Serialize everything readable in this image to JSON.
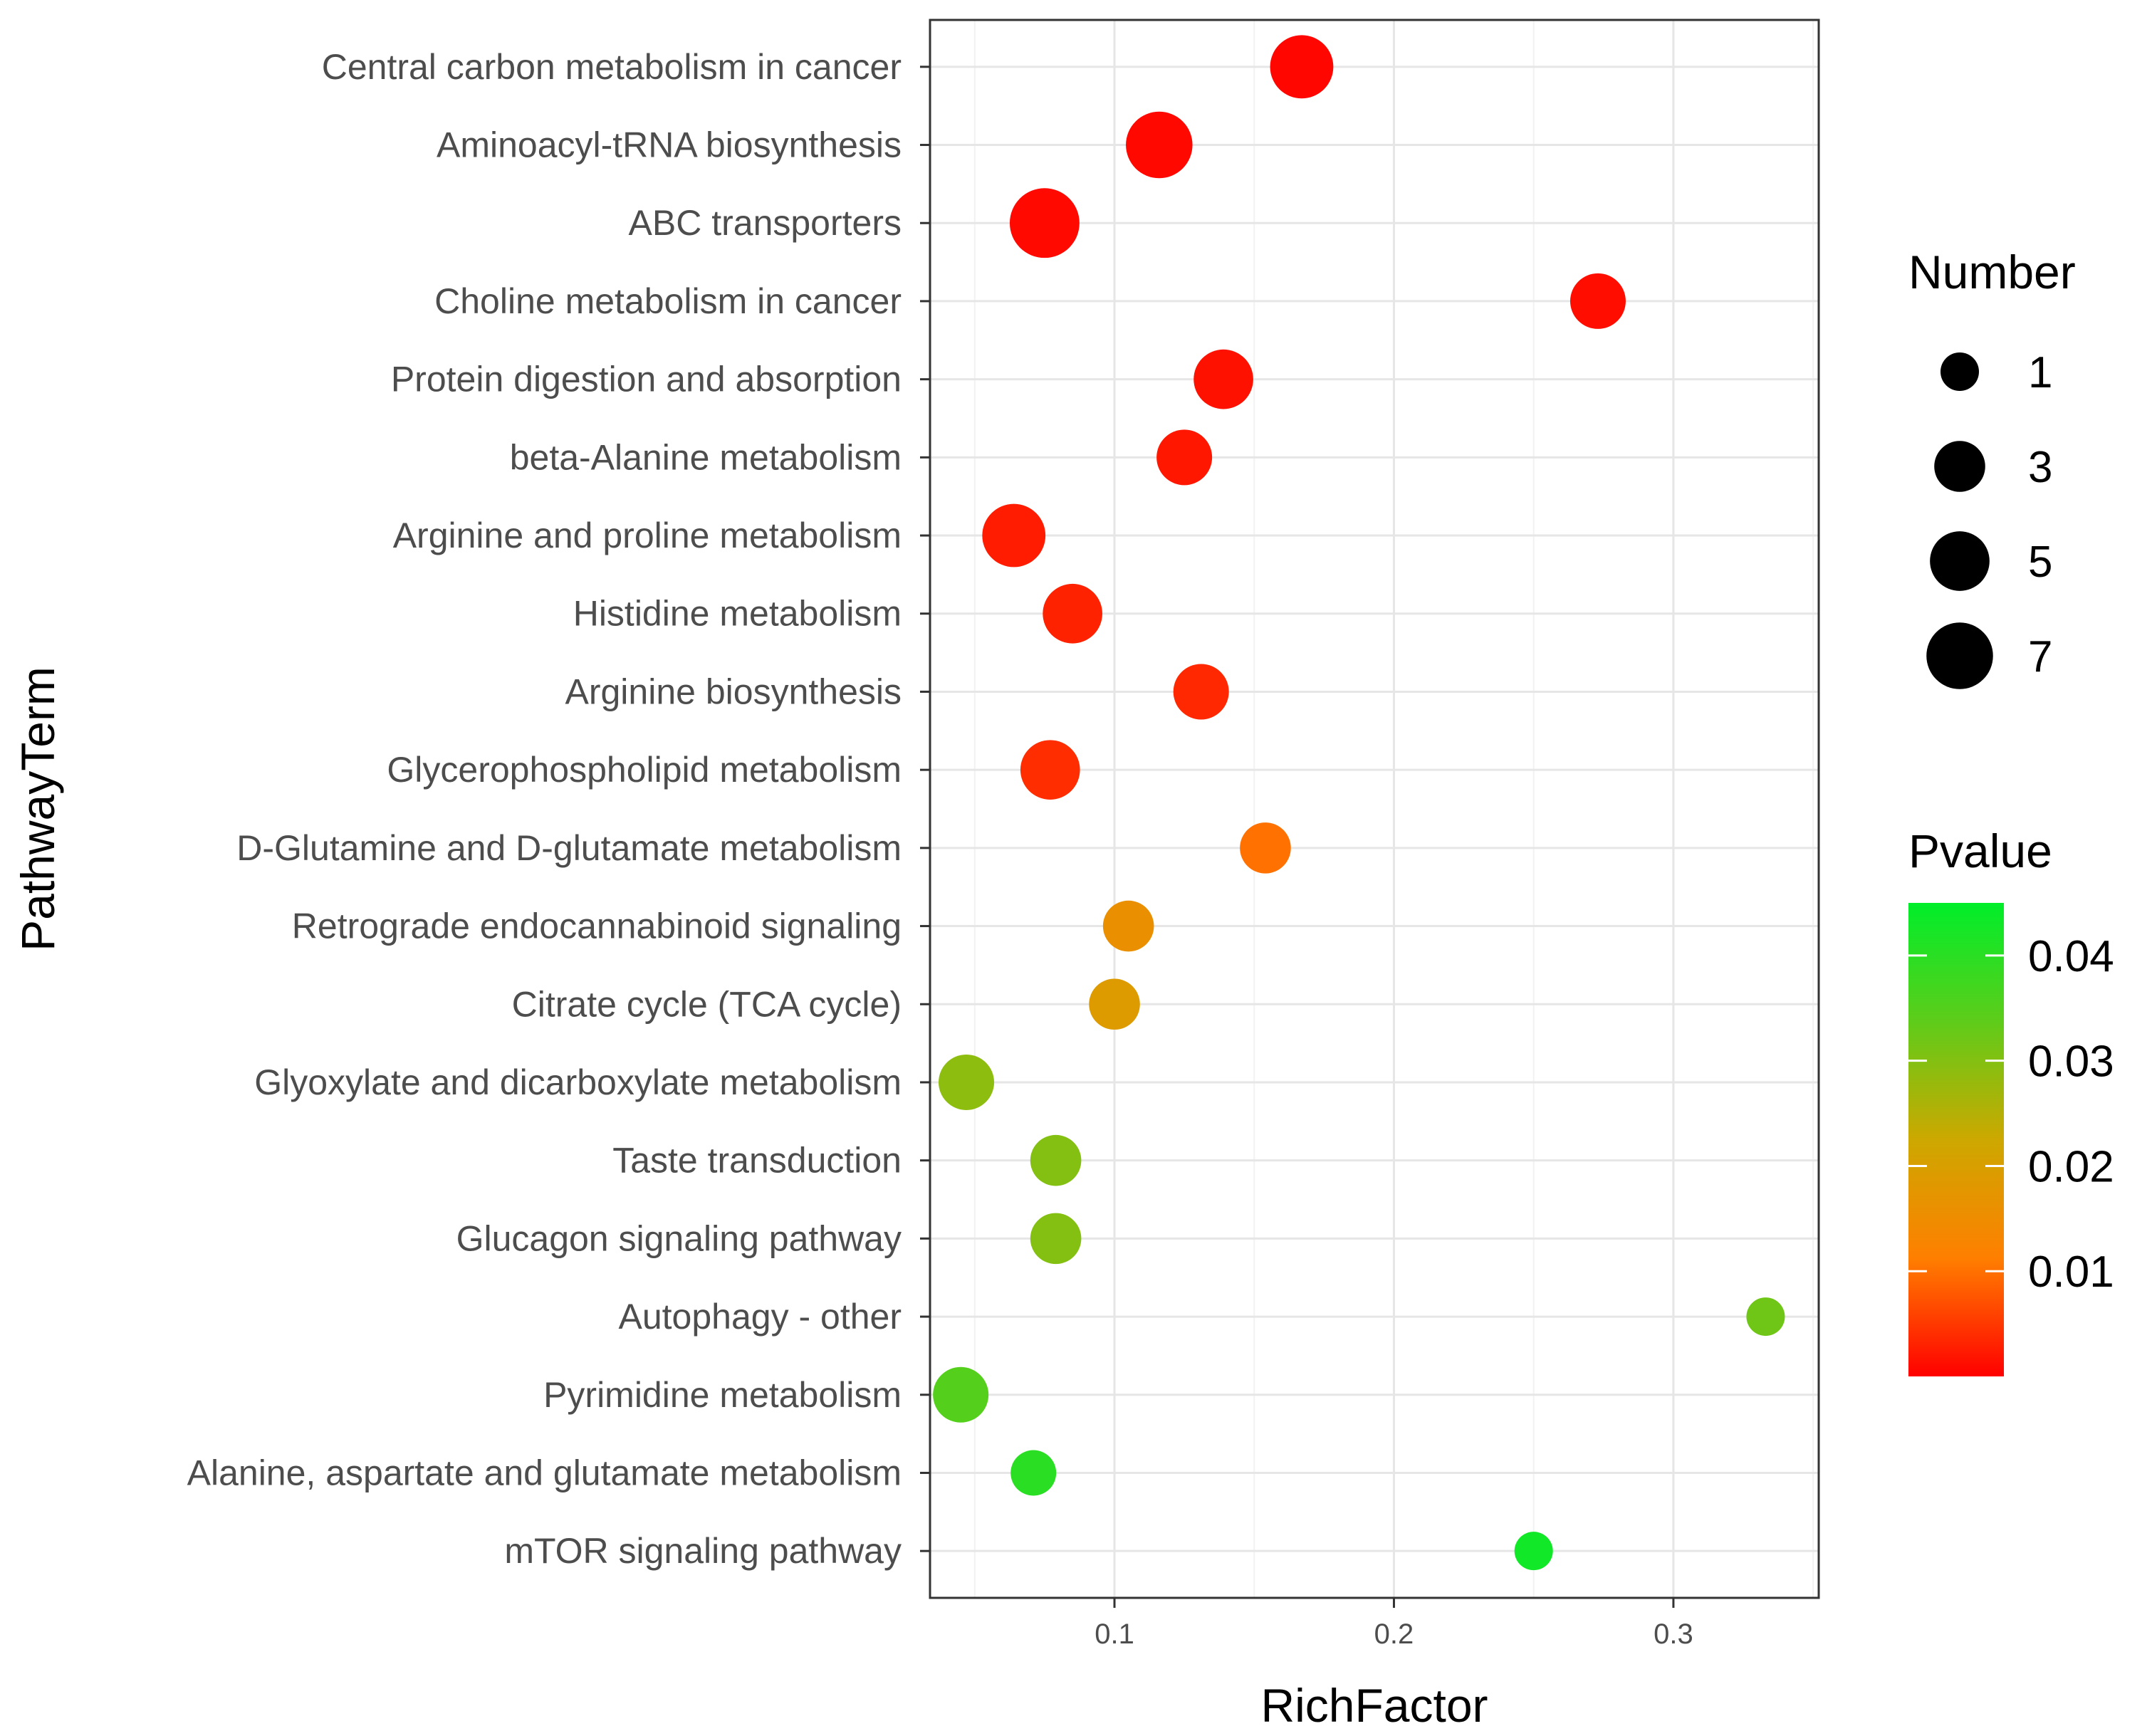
{
  "chart_data": {
    "type": "scatter",
    "xlabel": "RichFactor",
    "ylabel": "PathwayTerm",
    "xlim": [
      0.034,
      0.352
    ],
    "x_ticks": [
      "0.1",
      "0.2",
      "0.3"
    ],
    "x_tick_values": [
      0.1,
      0.2,
      0.3
    ],
    "grid": true,
    "legend_position": "right",
    "pathways": [
      {
        "term": "Central carbon metabolism in cancer",
        "richfactor": 0.167,
        "number": 6,
        "pvalue": 0.0005
      },
      {
        "term": "Aminoacyl-tRNA biosynthesis",
        "richfactor": 0.116,
        "number": 7,
        "pvalue": 0.0007
      },
      {
        "term": "ABC transporters",
        "richfactor": 0.075,
        "number": 8,
        "pvalue": 0.0008
      },
      {
        "term": "Choline metabolism in cancer",
        "richfactor": 0.273,
        "number": 4,
        "pvalue": 0.0012
      },
      {
        "term": "Protein digestion and absorption",
        "richfactor": 0.139,
        "number": 5,
        "pvalue": 0.0015
      },
      {
        "term": "beta-Alanine metabolism",
        "richfactor": 0.125,
        "number": 4,
        "pvalue": 0.002
      },
      {
        "term": "Arginine and proline metabolism",
        "richfactor": 0.064,
        "number": 6,
        "pvalue": 0.0025
      },
      {
        "term": "Histidine metabolism",
        "richfactor": 0.085,
        "number": 5,
        "pvalue": 0.003
      },
      {
        "term": "Arginine biosynthesis",
        "richfactor": 0.131,
        "number": 4,
        "pvalue": 0.0035
      },
      {
        "term": "Glycerophospholipid metabolism",
        "richfactor": 0.077,
        "number": 5,
        "pvalue": 0.004
      },
      {
        "term": "D-Glutamine and D-glutamate metabolism",
        "richfactor": 0.154,
        "number": 3,
        "pvalue": 0.01
      },
      {
        "term": "Retrograde endocannabinoid signaling",
        "richfactor": 0.105,
        "number": 3,
        "pvalue": 0.016
      },
      {
        "term": "Citrate cycle (TCA cycle)",
        "richfactor": 0.1,
        "number": 3,
        "pvalue": 0.019
      },
      {
        "term": "Glyoxylate and dicarboxylate metabolism",
        "richfactor": 0.047,
        "number": 4,
        "pvalue": 0.029
      },
      {
        "term": "Taste transduction",
        "richfactor": 0.079,
        "number": 3,
        "pvalue": 0.03
      },
      {
        "term": "Glucagon signaling pathway",
        "richfactor": 0.079,
        "number": 3,
        "pvalue": 0.03
      },
      {
        "term": "Autophagy - other",
        "richfactor": 0.333,
        "number": 1,
        "pvalue": 0.032
      },
      {
        "term": "Pyrimidine metabolism",
        "richfactor": 0.045,
        "number": 4,
        "pvalue": 0.035
      },
      {
        "term": "Alanine, aspartate and glutamate metabolism",
        "richfactor": 0.071,
        "number": 2,
        "pvalue": 0.04
      },
      {
        "term": "mTOR signaling pathway",
        "richfactor": 0.25,
        "number": 1,
        "pvalue": 0.043
      }
    ],
    "size_legend": {
      "title": "Number",
      "values": [
        1,
        3,
        5,
        7
      ]
    },
    "color_legend": {
      "title": "Pvalue",
      "range": [
        0.0,
        0.045
      ],
      "ticks": [
        "0.01",
        "0.02",
        "0.03",
        "0.04"
      ],
      "tick_values": [
        0.01,
        0.02,
        0.03,
        0.04
      ],
      "colors": [
        "#ff0000",
        "#ff7f00",
        "#cda800",
        "#5ecc1a",
        "#00ee2a"
      ]
    }
  }
}
